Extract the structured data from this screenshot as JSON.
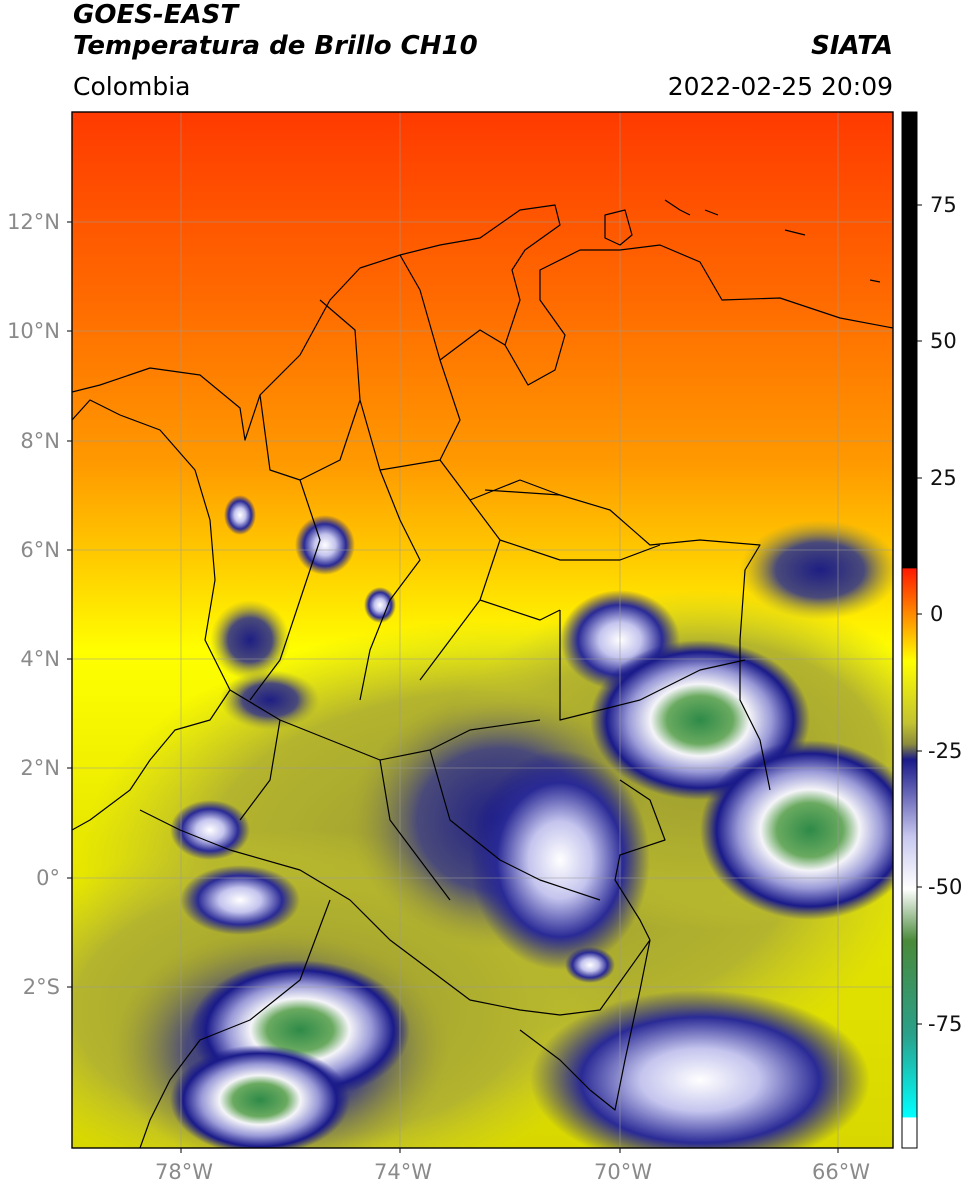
{
  "header": {
    "satellite": "GOES-EAST",
    "product": "Temperatura de Brillo CH10",
    "region": "Colombia",
    "agency": "SIATA",
    "datetime": "2022-02-25 20:09"
  },
  "map": {
    "lat_labels": [
      "12°N",
      "10°N",
      "8°N",
      "6°N",
      "4°N",
      "2°N",
      "0°",
      "2°S"
    ],
    "lon_labels": [
      "78°W",
      "74°W",
      "70°W",
      "66°W"
    ],
    "gridlines": true
  },
  "colorbar": {
    "unit": "",
    "range": [
      -95,
      90
    ],
    "ticks": [
      "75",
      "50",
      "25",
      "0",
      "-25",
      "-50",
      "-75"
    ],
    "stops": [
      {
        "value": 90,
        "color": "#000000"
      },
      {
        "value": 8,
        "color": "#000000"
      },
      {
        "value": 7.9,
        "color": "#ff1a00"
      },
      {
        "value": -8,
        "color": "#ffff00"
      },
      {
        "value": -18,
        "color": "#c2c232"
      },
      {
        "value": -22,
        "color": "#8c8c3c"
      },
      {
        "value": -26,
        "color": "#1a1a8a"
      },
      {
        "value": -40,
        "color": "#c8c8f0"
      },
      {
        "value": -50,
        "color": "#ffffff"
      },
      {
        "value": -60,
        "color": "#4a8a3a"
      },
      {
        "value": -75,
        "color": "#2aa08a"
      },
      {
        "value": -90,
        "color": "#00ffff"
      },
      {
        "value": -90.1,
        "color": "#ffffff"
      },
      {
        "value": -95,
        "color": "#ffffff"
      }
    ]
  }
}
